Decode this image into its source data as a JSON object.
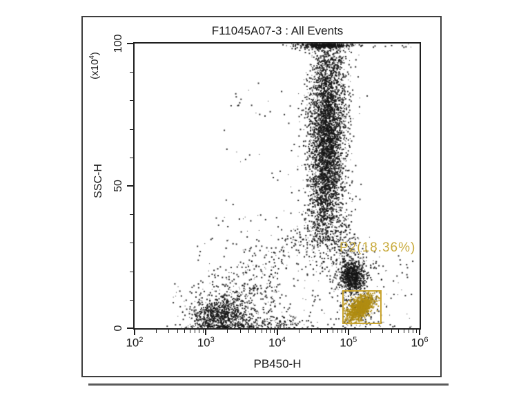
{
  "plot": {
    "title": "F11045A07-3 : All Events",
    "x_axis": {
      "label": "PB450-H",
      "scale": "log10",
      "min_exp": 2,
      "max_exp": 6,
      "ticks": [
        {
          "base": "10",
          "exp": "2"
        },
        {
          "base": "10",
          "exp": "3"
        },
        {
          "base": "10",
          "exp": "4"
        },
        {
          "base": "10",
          "exp": "5"
        },
        {
          "base": "10",
          "exp": "6"
        }
      ]
    },
    "y_axis": {
      "label": "SSC-H",
      "multiplier": {
        "open": "(x10",
        "exp": "4",
        "close": ")"
      },
      "min": 0,
      "max": 100,
      "ticks": [
        {
          "value": 0,
          "label": "0"
        },
        {
          "value": 50,
          "label": "50"
        },
        {
          "value": 100,
          "label": "100"
        }
      ],
      "minor_step": 10
    },
    "gate": {
      "name": "P2",
      "label": "P2(18.36%)",
      "percent": 18.36,
      "x_range_exp": [
        4.915,
        5.467
      ],
      "y_range": [
        1.46,
        13.35
      ]
    }
  },
  "colors": {
    "dot_black": "#161616",
    "dot_gold": "#b08c12",
    "gate_border": "#c9a42e",
    "gate_label": "#c9ab3d",
    "axis": "#1e1e1e",
    "frame": "#3d3d3d",
    "text": "#1c1c1c",
    "underline": "#5a5a5a"
  },
  "chart_data": {
    "type": "scatter",
    "title": "F11045A07-3 : All Events",
    "xlabel": "PB450-H",
    "ylabel": "SSC-H (x10^4)",
    "x_scale": "log10",
    "x_range_exp": [
      2,
      6
    ],
    "ylim": [
      0,
      100
    ],
    "grid": false,
    "legend": "none",
    "gate_percent_label": "P2(18.36%)",
    "clusters": [
      {
        "id": "granulocyte-halo",
        "type": "gauss",
        "n": 450,
        "cx": 4.68,
        "sx": 0.21,
        "cy": 66,
        "sy": 24,
        "clamp_top": true,
        "color": "black"
      },
      {
        "id": "granulocyte-upper",
        "type": "gauss",
        "n": 1500,
        "cx": 4.72,
        "sx": 0.125,
        "cy": 84,
        "sy": 13,
        "clamp_top": true,
        "color": "black"
      },
      {
        "id": "granulocyte-core",
        "type": "gauss",
        "n": 2300,
        "cx": 4.68,
        "sx": 0.115,
        "cy": 60,
        "sy": 13,
        "color": "black"
      },
      {
        "id": "granulocyte-tail",
        "type": "gauss",
        "n": 260,
        "cx": 4.62,
        "sx": 0.11,
        "cy": 38,
        "sy": 8,
        "color": "black"
      },
      {
        "id": "top-pileup",
        "type": "pile",
        "n": 260,
        "cx": 4.6,
        "sx": 0.16,
        "top": 100,
        "drop": 0.7,
        "color": "black"
      },
      {
        "id": "top-stray",
        "type": "uniform",
        "n": 14,
        "x0": 4.95,
        "x1": 5.9,
        "y0": 98.8,
        "y1": 100,
        "color": "black"
      },
      {
        "id": "monocyte-trail",
        "type": "gauss",
        "n": 170,
        "cx": 4.93,
        "sx": 0.1,
        "cy": 28,
        "sy": 7,
        "color": "black"
      },
      {
        "id": "lymphocyte-halo",
        "type": "gauss",
        "n": 240,
        "cx": 5.04,
        "sx": 0.14,
        "cy": 19,
        "sy": 5,
        "color": "black"
      },
      {
        "id": "lymphocyte-core",
        "type": "gauss",
        "n": 620,
        "cx": 5.05,
        "sx": 0.082,
        "cy": 18.5,
        "sy": 2.5,
        "color": "black"
      },
      {
        "id": "debris-halo",
        "type": "gauss",
        "n": 300,
        "cx": 3.3,
        "sx": 0.33,
        "cy": 8,
        "sy": 5.5,
        "clamp_bottom": true,
        "color": "black"
      },
      {
        "id": "debris-core",
        "type": "gauss",
        "n": 650,
        "cx": 3.16,
        "sx": 0.2,
        "cy": 4.5,
        "sy": 3,
        "clamp_bottom": true,
        "color": "black"
      },
      {
        "id": "bottom-streak",
        "type": "band",
        "n": 160,
        "x0": 3.3,
        "y0": 1.2,
        "x1": 4.3,
        "y1": 2.5,
        "sx": 0.08,
        "sy": 1.2,
        "clamp_bottom": true,
        "color": "black"
      },
      {
        "id": "diagonal-arm",
        "type": "band",
        "n": 300,
        "x0": 3.05,
        "y0": 2.5,
        "x1": 4.72,
        "y1": 40,
        "sx": 0.13,
        "sy": 4.5,
        "color": "black"
      },
      {
        "id": "background-sparse",
        "type": "uniform",
        "n": 260,
        "x0": 2.85,
        "x1": 5.05,
        "y0": 0.3,
        "y1": 40,
        "pow": 1.7,
        "color": "black"
      },
      {
        "id": "left-high-sparse",
        "type": "uniform",
        "n": 40,
        "x0": 3.2,
        "x1": 4.45,
        "y0": 35,
        "y1": 92,
        "color": "black"
      },
      {
        "id": "right-sparse",
        "type": "uniform",
        "n": 70,
        "x0": 5.15,
        "x1": 5.9,
        "y0": 0.5,
        "y1": 26,
        "pow": 1.3,
        "color": "black"
      },
      {
        "id": "gate-sprinkle",
        "type": "gauss",
        "n": 160,
        "cx": 5.15,
        "sx": 0.13,
        "cy": 7.5,
        "sy": 3.6,
        "color": "black"
      },
      {
        "id": "gate-population",
        "type": "gauss",
        "n": 950,
        "cx": 5.16,
        "sx": 0.095,
        "cy": 7.2,
        "sy": 2.4,
        "corr": 0.55,
        "clip_gate": true,
        "color": "gold"
      },
      {
        "id": "gate-pop-edge",
        "type": "gauss",
        "n": 150,
        "cx": 5.16,
        "sx": 0.13,
        "cy": 7.3,
        "sy": 3.2,
        "corr": 0.5,
        "clip_gate": true,
        "color": "gold"
      }
    ]
  }
}
